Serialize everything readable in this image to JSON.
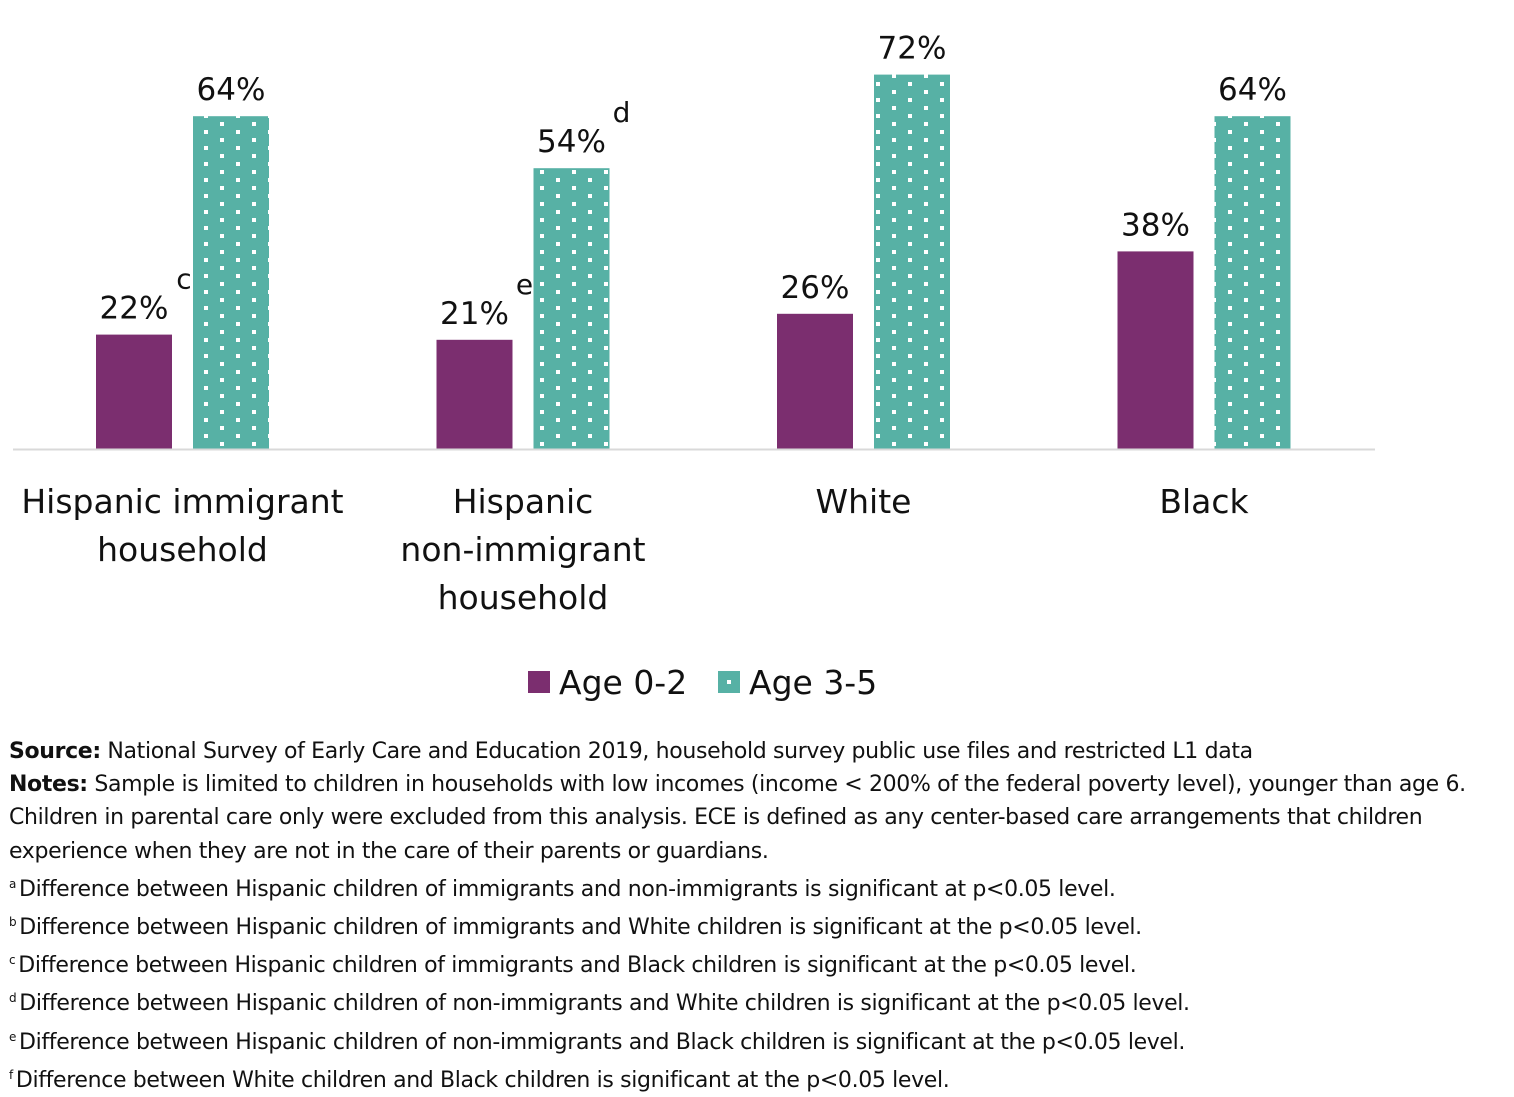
{
  "chart_data": {
    "type": "bar",
    "title": "",
    "xlabel": "",
    "ylabel": "",
    "ylim": [
      0,
      86
    ],
    "grid": false,
    "legend_placement": "bottom",
    "categories": [
      [
        "Hispanic immigrant",
        "household"
      ],
      [
        "Hispanic",
        "non-immigrant",
        "household"
      ],
      [
        "White"
      ],
      [
        "Black"
      ]
    ],
    "series": [
      {
        "name": "Age 0-2",
        "values": [
          22,
          21,
          26,
          38
        ],
        "labels": [
          "22%",
          "21%",
          "26%",
          "38%"
        ],
        "annotations": [
          "c",
          "e",
          "",
          ""
        ],
        "color": "#7B2E6F",
        "pattern": "solid"
      },
      {
        "name": "Age 3-5",
        "values": [
          64,
          54,
          72,
          64
        ],
        "labels": [
          "64%",
          "54%",
          "72%",
          "64%"
        ],
        "annotations": [
          "",
          "d",
          "",
          ""
        ],
        "color": "#57B1A5",
        "pattern": "white-dots"
      }
    ],
    "axis_color": "#D9D9D9"
  },
  "notes": {
    "source_label": "Source:",
    "source_text": " National Survey of Early Care and Education 2019, household survey public use files and restricted L1 data",
    "notes_label": "Notes:",
    "notes_lines": [
      " Sample is limited to children in households with low incomes (income < 200% of the federal poverty level), younger than age 6.",
      "Children in parental care only were excluded from this analysis. ECE is defined as any center-based care arrangements that children",
      "experience when they are not in the care of their parents or guardians."
    ],
    "footnotes": [
      {
        "mark": "a",
        "text": "Difference between Hispanic children of immigrants and non-immigrants is significant at p<0.05 level."
      },
      {
        "mark": "b",
        "text": "Difference between Hispanic children of immigrants and White children is significant at the p<0.05 level."
      },
      {
        "mark": "c",
        "text": "Difference between Hispanic children of immigrants and Black children is significant at the p<0.05 level."
      },
      {
        "mark": "d",
        "text": "Difference between Hispanic children of non-immigrants and White children is significant at the p<0.05 level."
      },
      {
        "mark": "e",
        "text": "Difference between Hispanic children of non-immigrants and Black children is significant at the p<0.05 level."
      },
      {
        "mark": "f",
        "text": "Difference between White children and Black children is significant at the p<0.05 level."
      }
    ]
  }
}
